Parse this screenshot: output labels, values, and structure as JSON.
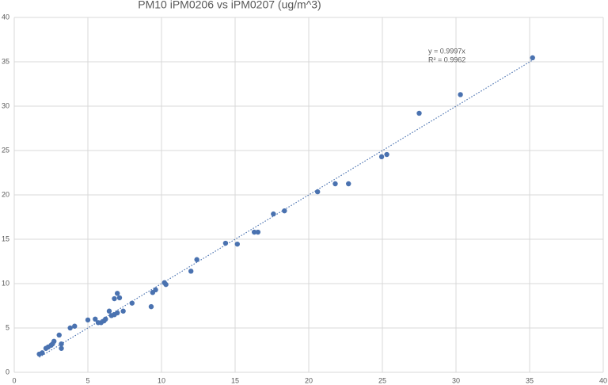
{
  "chart_data": {
    "type": "scatter",
    "title": "PM10 iPM0206 vs iPM0207 (ug/m^3)",
    "annotations": [
      "y = 0.9997x",
      "R² = 0.9962"
    ],
    "x": [
      1.7,
      1.9,
      2.15,
      2.3,
      2.5,
      2.6,
      2.7,
      3.05,
      3.2,
      3.2,
      3.8,
      4.1,
      5.0,
      5.5,
      5.7,
      5.9,
      6.1,
      6.2,
      6.45,
      6.6,
      6.8,
      7.0,
      6.8,
      7.0,
      7.15,
      7.4,
      8.0,
      9.3,
      9.4,
      9.6,
      10.2,
      10.3,
      12.0,
      12.4,
      14.35,
      15.15,
      16.3,
      16.55,
      17.6,
      18.35,
      20.6,
      21.8,
      22.7,
      24.95,
      25.3,
      27.5,
      30.3,
      35.2
    ],
    "series": [
      {
        "color": "#4a72b0",
        "values": [
          2.05,
          2.2,
          2.7,
          2.85,
          3.05,
          3.2,
          3.5,
          4.2,
          3.2,
          2.7,
          5.0,
          5.2,
          5.9,
          6.0,
          5.6,
          5.6,
          5.8,
          6.0,
          6.9,
          6.4,
          6.5,
          6.7,
          8.3,
          8.9,
          8.4,
          6.9,
          7.8,
          7.4,
          9.0,
          9.3,
          10.1,
          9.9,
          11.4,
          12.7,
          14.55,
          14.45,
          15.8,
          15.8,
          17.85,
          18.2,
          20.35,
          21.25,
          21.25,
          24.3,
          24.55,
          29.2,
          31.3,
          35.45
        ]
      }
    ],
    "trendline": {
      "slope": 0.9997,
      "xlim": [
        1.7,
        35.2
      ],
      "color": "#4a72b0"
    },
    "xlim": [
      0,
      40
    ],
    "ylim": [
      0,
      40
    ],
    "xticks": [
      0,
      5,
      10,
      15,
      20,
      25,
      30,
      35,
      40
    ],
    "yticks": [
      0,
      5,
      10,
      15,
      20,
      25,
      30,
      35,
      40
    ],
    "grid": true
  }
}
